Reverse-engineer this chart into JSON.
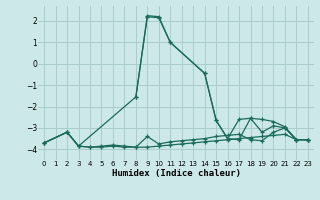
{
  "xlabel": "Humidex (Indice chaleur)",
  "xlim": [
    -0.5,
    23.5
  ],
  "ylim": [
    -4.5,
    2.7
  ],
  "yticks": [
    -4,
    -3,
    -2,
    -1,
    0,
    1,
    2
  ],
  "xticks": [
    0,
    1,
    2,
    3,
    4,
    5,
    6,
    7,
    8,
    9,
    10,
    11,
    12,
    13,
    14,
    15,
    16,
    17,
    18,
    19,
    20,
    21,
    22,
    23
  ],
  "bg_color": "#cce8e8",
  "grid_color": "#aacccc",
  "line_color": "#1a6b5a",
  "lines": [
    {
      "x": [
        0,
        2,
        3,
        4,
        5,
        6,
        7,
        8,
        9,
        10,
        11,
        12,
        13,
        14,
        15,
        16,
        17,
        18,
        19,
        20,
        21,
        22,
        23
      ],
      "y": [
        -3.7,
        -3.2,
        -3.85,
        -3.9,
        -3.9,
        -3.85,
        -3.9,
        -3.9,
        -3.9,
        -3.85,
        -3.8,
        -3.75,
        -3.7,
        -3.65,
        -3.6,
        -3.55,
        -3.5,
        -3.45,
        -3.4,
        -3.35,
        -3.3,
        -3.55,
        -3.55
      ]
    },
    {
      "x": [
        0,
        2,
        3,
        4,
        5,
        6,
        7,
        8,
        9,
        10,
        11,
        12,
        13,
        14,
        15,
        16,
        17,
        18,
        19,
        20,
        21,
        22,
        23
      ],
      "y": [
        -3.7,
        -3.2,
        -3.85,
        -3.9,
        -3.85,
        -3.8,
        -3.85,
        -3.9,
        -3.4,
        -3.75,
        -3.65,
        -3.6,
        -3.55,
        -3.5,
        -3.4,
        -3.35,
        -3.3,
        -3.55,
        -3.6,
        -3.2,
        -3.0,
        -3.55,
        -3.55
      ]
    },
    {
      "x": [
        0,
        2,
        3,
        8,
        9,
        10,
        11,
        14,
        15,
        16,
        17,
        18,
        19,
        20,
        21,
        22,
        23
      ],
      "y": [
        -3.7,
        -3.2,
        -3.85,
        -1.55,
        2.2,
        2.15,
        1.0,
        -0.45,
        -2.65,
        -3.5,
        -3.55,
        -2.55,
        -2.6,
        -2.7,
        -2.95,
        -3.55,
        -3.55
      ]
    },
    {
      "x": [
        8,
        9,
        10,
        11,
        14,
        15,
        16,
        17,
        18,
        19,
        20,
        21,
        22,
        23
      ],
      "y": [
        -1.55,
        2.25,
        2.2,
        1.0,
        -0.45,
        -2.65,
        -3.5,
        -2.6,
        -2.55,
        -3.2,
        -2.9,
        -3.0,
        -3.55,
        -3.55
      ]
    }
  ]
}
